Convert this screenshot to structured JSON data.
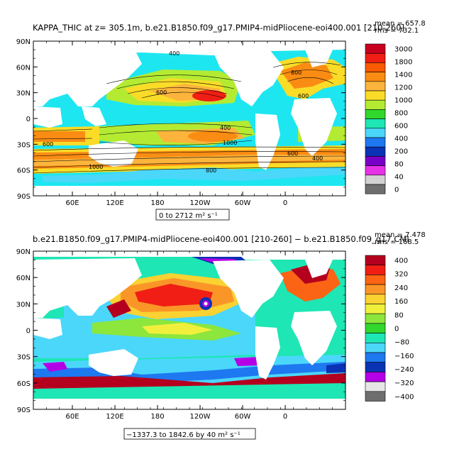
{
  "chart_data": [
    {
      "type": "heatmap",
      "title": "KAPPA_THIC at z= 305.1m, b.e21.B1850.f09_g17.PMIP4-midPliocene-eoi400.001 [210-260]",
      "stats_line1": "mean = 657.8",
      "stats_line2": "rms = 732.1",
      "x_ticks": [
        "60E",
        "120E",
        "180",
        "120W",
        "60W",
        "0"
      ],
      "y_ticks": [
        "90N",
        "60N",
        "30N",
        "0",
        "30S",
        "60S",
        "90S"
      ],
      "range_label": "0 to 2712 m² s⁻¹",
      "colorbar_levels": [
        "3000",
        "1800",
        "1400",
        "1200",
        "1000",
        "800",
        "600",
        "400",
        "200",
        "80",
        "40",
        "0"
      ],
      "colorbar_colors": [
        "#c8001e",
        "#f01e14",
        "#fa5a00",
        "#fa8c14",
        "#fcb43c",
        "#fadc28",
        "#b4eb32",
        "#32d72d",
        "#1ee6b4",
        "#4bd7fa",
        "#1e78f0",
        "#0a32b4",
        "#7800c8",
        "#e632e6",
        "#d2d2d2",
        "#6e6e6e"
      ],
      "contour_labels": [
        "400",
        "600",
        "800",
        "600",
        "400",
        "1000",
        "600",
        "1000",
        "800",
        "600",
        "400"
      ]
    },
    {
      "type": "heatmap",
      "title": "b.e21.B1850.f09_g17.PMIP4-midPliocene-eoi400.001 [210-260] − b.e21.B1850.f09_g17.CMI",
      "stats_line1": "mean = 7.478",
      "stats_line2": "rms = 168.5",
      "x_ticks": [
        "60E",
        "120E",
        "180",
        "120W",
        "60W",
        "0"
      ],
      "y_ticks": [
        "90N",
        "60N",
        "30N",
        "0",
        "30S",
        "60S",
        "90S"
      ],
      "range_label": "−1337.3 to 1842.6 by 40 m² s⁻¹",
      "colorbar_levels": [
        "400",
        "320",
        "240",
        "160",
        "80",
        "0",
        "−80",
        "−160",
        "−240",
        "−320",
        "−400"
      ],
      "colorbar_colors": [
        "#b4001e",
        "#f01e14",
        "#fa6414",
        "#fa9628",
        "#fad232",
        "#f0f03c",
        "#8ce63c",
        "#32d72d",
        "#1ee6b4",
        "#4bd7fa",
        "#1e78f0",
        "#0a32b4",
        "#b400e6",
        "#e6e6e6",
        "#6e6e6e"
      ]
    }
  ]
}
